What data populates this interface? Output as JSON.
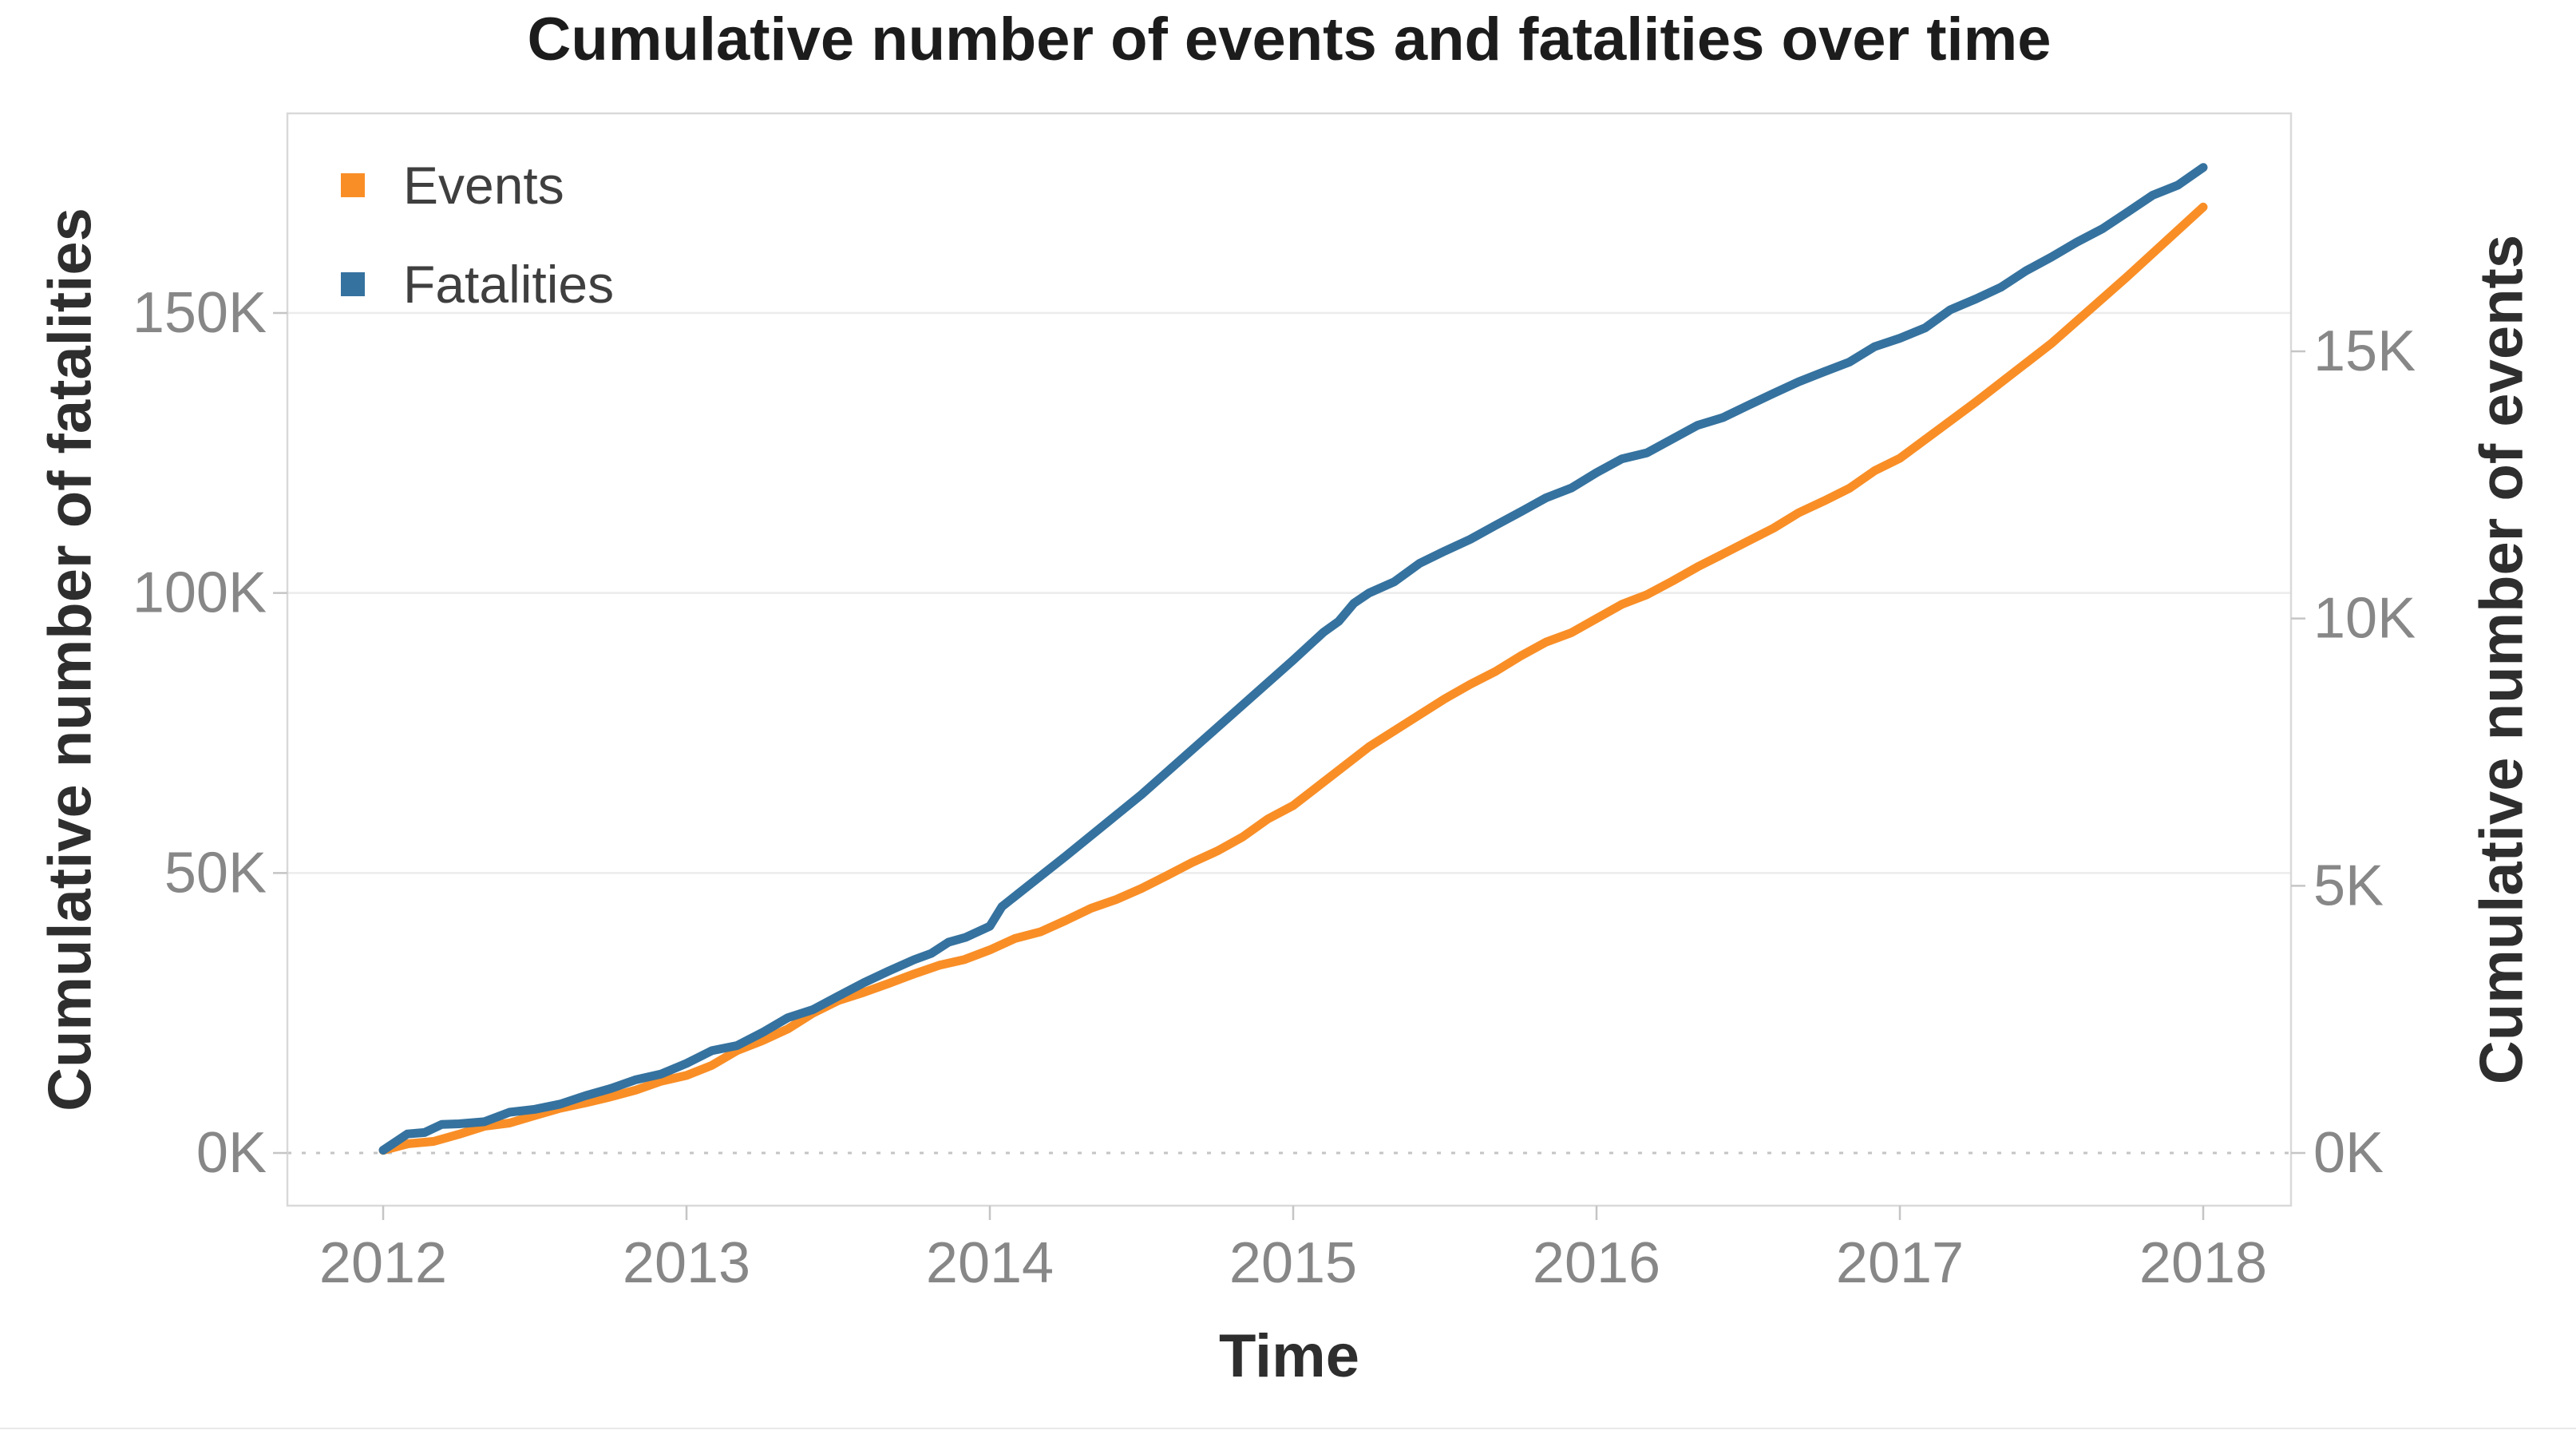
{
  "chart": {
    "title": "Cumulative number of events and fatalities over time",
    "x_axis_title": "Time",
    "y_left_axis_title": "Cumulative number of fatalities",
    "y_right_axis_title": "Cumulative number of events"
  },
  "legend": {
    "position": "top-left-inside-plot",
    "items": [
      {
        "label": "Events",
        "color": "#F98E26"
      },
      {
        "label": "Fatalities",
        "color": "#35729F"
      }
    ]
  },
  "colors": {
    "events_line": "#F98E26",
    "fatalities_line": "#35729F",
    "title_text": "#1c1c1c",
    "axis_title_text": "#2e2e2e",
    "tick_label_text": "#878787",
    "gridline": "#ececec",
    "zero_line_dotted": "#c4c4c4",
    "plot_border": "#d9d9d9",
    "tick_mark": "#c5c5c5",
    "background": "#ffffff"
  },
  "chart_data": {
    "type": "line",
    "title": "Cumulative number of events and fatalities over time",
    "xlabel": "Time",
    "ylabel_left": "Cumulative number of fatalities",
    "ylabel_right": "Cumulative number of events",
    "grid": "horizontal gridlines at left-axis ticks; dotted line at zero; legend top-left inside plot",
    "x_range": [
      2011.68,
      2018.29
    ],
    "x_ticks": [
      {
        "v": 2012,
        "label": "2012"
      },
      {
        "v": 2013,
        "label": "2013"
      },
      {
        "v": 2014,
        "label": "2014"
      },
      {
        "v": 2015,
        "label": "2015"
      },
      {
        "v": 2016,
        "label": "2016"
      },
      {
        "v": 2017,
        "label": "2017"
      },
      {
        "v": 2018,
        "label": "2018"
      }
    ],
    "y_left": {
      "label": "Cumulative number of fatalities",
      "range": [
        0,
        186000
      ],
      "ticks": [
        {
          "v": 0,
          "label": "0K"
        },
        {
          "v": 50000,
          "label": "50K"
        },
        {
          "v": 100000,
          "label": "100K"
        },
        {
          "v": 150000,
          "label": "150K"
        }
      ]
    },
    "y_right": {
      "label": "Cumulative number of events",
      "range": [
        0,
        19400
      ],
      "ticks": [
        {
          "v": 0,
          "label": "0K"
        },
        {
          "v": 5000,
          "label": "5K"
        },
        {
          "v": 10000,
          "label": "10K"
        },
        {
          "v": 15000,
          "label": "15K"
        }
      ]
    },
    "series": [
      {
        "name": "Events",
        "axis": "right",
        "color": "#F98E26",
        "points": [
          [
            2012.0,
            50
          ],
          [
            2012.25,
            350
          ],
          [
            2012.5,
            700
          ],
          [
            2012.75,
            1050
          ],
          [
            2013.0,
            1450
          ],
          [
            2013.25,
            2100
          ],
          [
            2013.5,
            2850
          ],
          [
            2013.75,
            3350
          ],
          [
            2014.0,
            3800
          ],
          [
            2014.25,
            4350
          ],
          [
            2014.5,
            4950
          ],
          [
            2014.75,
            5650
          ],
          [
            2015.0,
            6500
          ],
          [
            2015.25,
            7600
          ],
          [
            2015.5,
            8500
          ],
          [
            2015.75,
            9300
          ],
          [
            2016.0,
            10000
          ],
          [
            2016.25,
            10700
          ],
          [
            2016.5,
            11450
          ],
          [
            2016.75,
            12200
          ],
          [
            2017.0,
            13000
          ],
          [
            2017.25,
            14050
          ],
          [
            2017.5,
            15150
          ],
          [
            2017.75,
            16400
          ],
          [
            2018.0,
            17700
          ]
        ]
      },
      {
        "name": "Fatalities",
        "axis": "left",
        "color": "#35729F",
        "points": [
          [
            2012.0,
            500
          ],
          [
            2012.08,
            3400
          ],
          [
            2012.25,
            5200
          ],
          [
            2012.5,
            7800
          ],
          [
            2012.75,
            11500
          ],
          [
            2013.0,
            16000
          ],
          [
            2013.25,
            21500
          ],
          [
            2013.5,
            28000
          ],
          [
            2013.75,
            34500
          ],
          [
            2013.92,
            38500
          ],
          [
            2014.0,
            40500
          ],
          [
            2014.04,
            44000
          ],
          [
            2014.25,
            53000
          ],
          [
            2014.5,
            64000
          ],
          [
            2014.75,
            76000
          ],
          [
            2015.0,
            88000
          ],
          [
            2015.1,
            93000
          ],
          [
            2015.25,
            100000
          ],
          [
            2015.5,
            107500
          ],
          [
            2015.75,
            114500
          ],
          [
            2016.0,
            121500
          ],
          [
            2016.25,
            127500
          ],
          [
            2016.5,
            133500
          ],
          [
            2016.75,
            139500
          ],
          [
            2017.0,
            145500
          ],
          [
            2017.25,
            152500
          ],
          [
            2017.5,
            160000
          ],
          [
            2017.75,
            168000
          ],
          [
            2018.0,
            176000
          ]
        ]
      }
    ]
  }
}
